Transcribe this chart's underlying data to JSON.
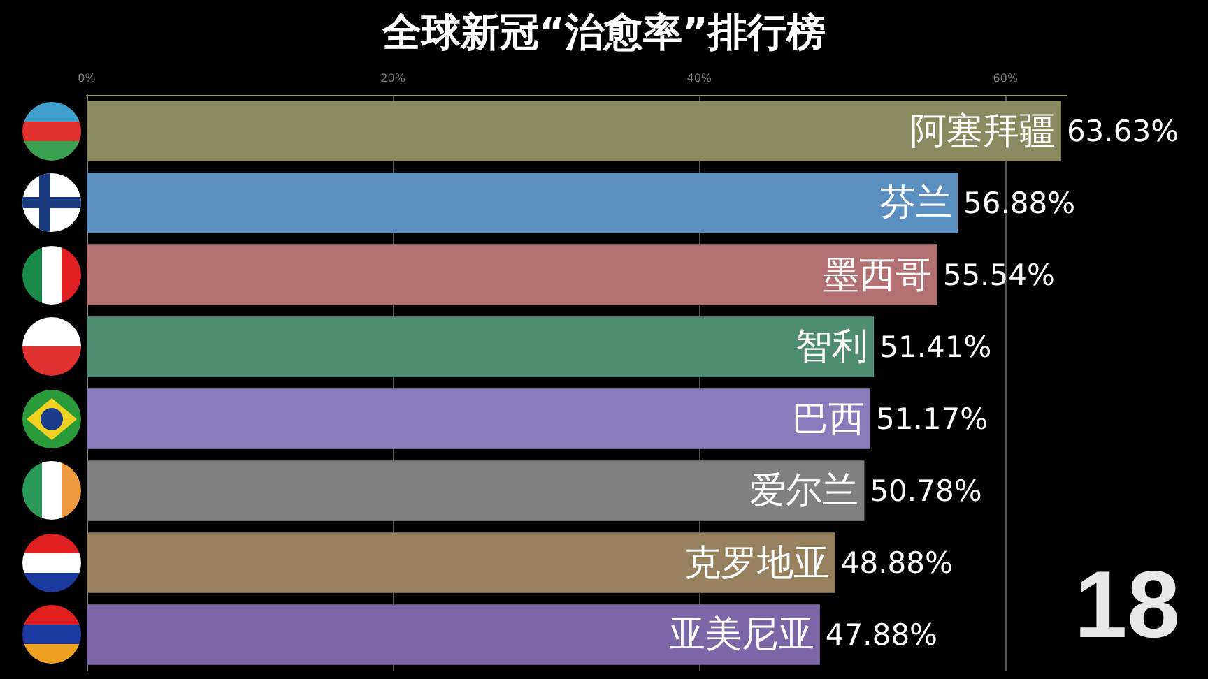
{
  "chart_data": {
    "type": "bar",
    "orientation": "horizontal",
    "title": "全球新冠“治愈率”排行榜",
    "categories": [
      "阿塞拜疆",
      "芬兰",
      "墨西哥",
      "智利",
      "巴西",
      "爱尔兰",
      "克罗地亚",
      "亚美尼亚"
    ],
    "values": [
      63.63,
      56.88,
      55.54,
      51.41,
      51.17,
      50.78,
      48.88,
      47.88
    ],
    "colors": [
      "#8a8a60",
      "#5a8fbf",
      "#b27070",
      "#4f8c72",
      "#8a7cba",
      "#808080",
      "#97805e",
      "#7b67a5"
    ],
    "value_labels": [
      "63.63%",
      "56.88%",
      "55.54%",
      "51.41%",
      "51.17%",
      "50.78%",
      "48.88%",
      "47.88%"
    ],
    "xlim": [
      0,
      64
    ],
    "xticks": [
      {
        "value": 0,
        "label": "0%"
      },
      {
        "value": 20,
        "label": "20%"
      },
      {
        "value": 40,
        "label": "40%"
      },
      {
        "value": 60,
        "label": "60%"
      }
    ],
    "grid": "x",
    "annotations": [
      "18"
    ]
  }
}
